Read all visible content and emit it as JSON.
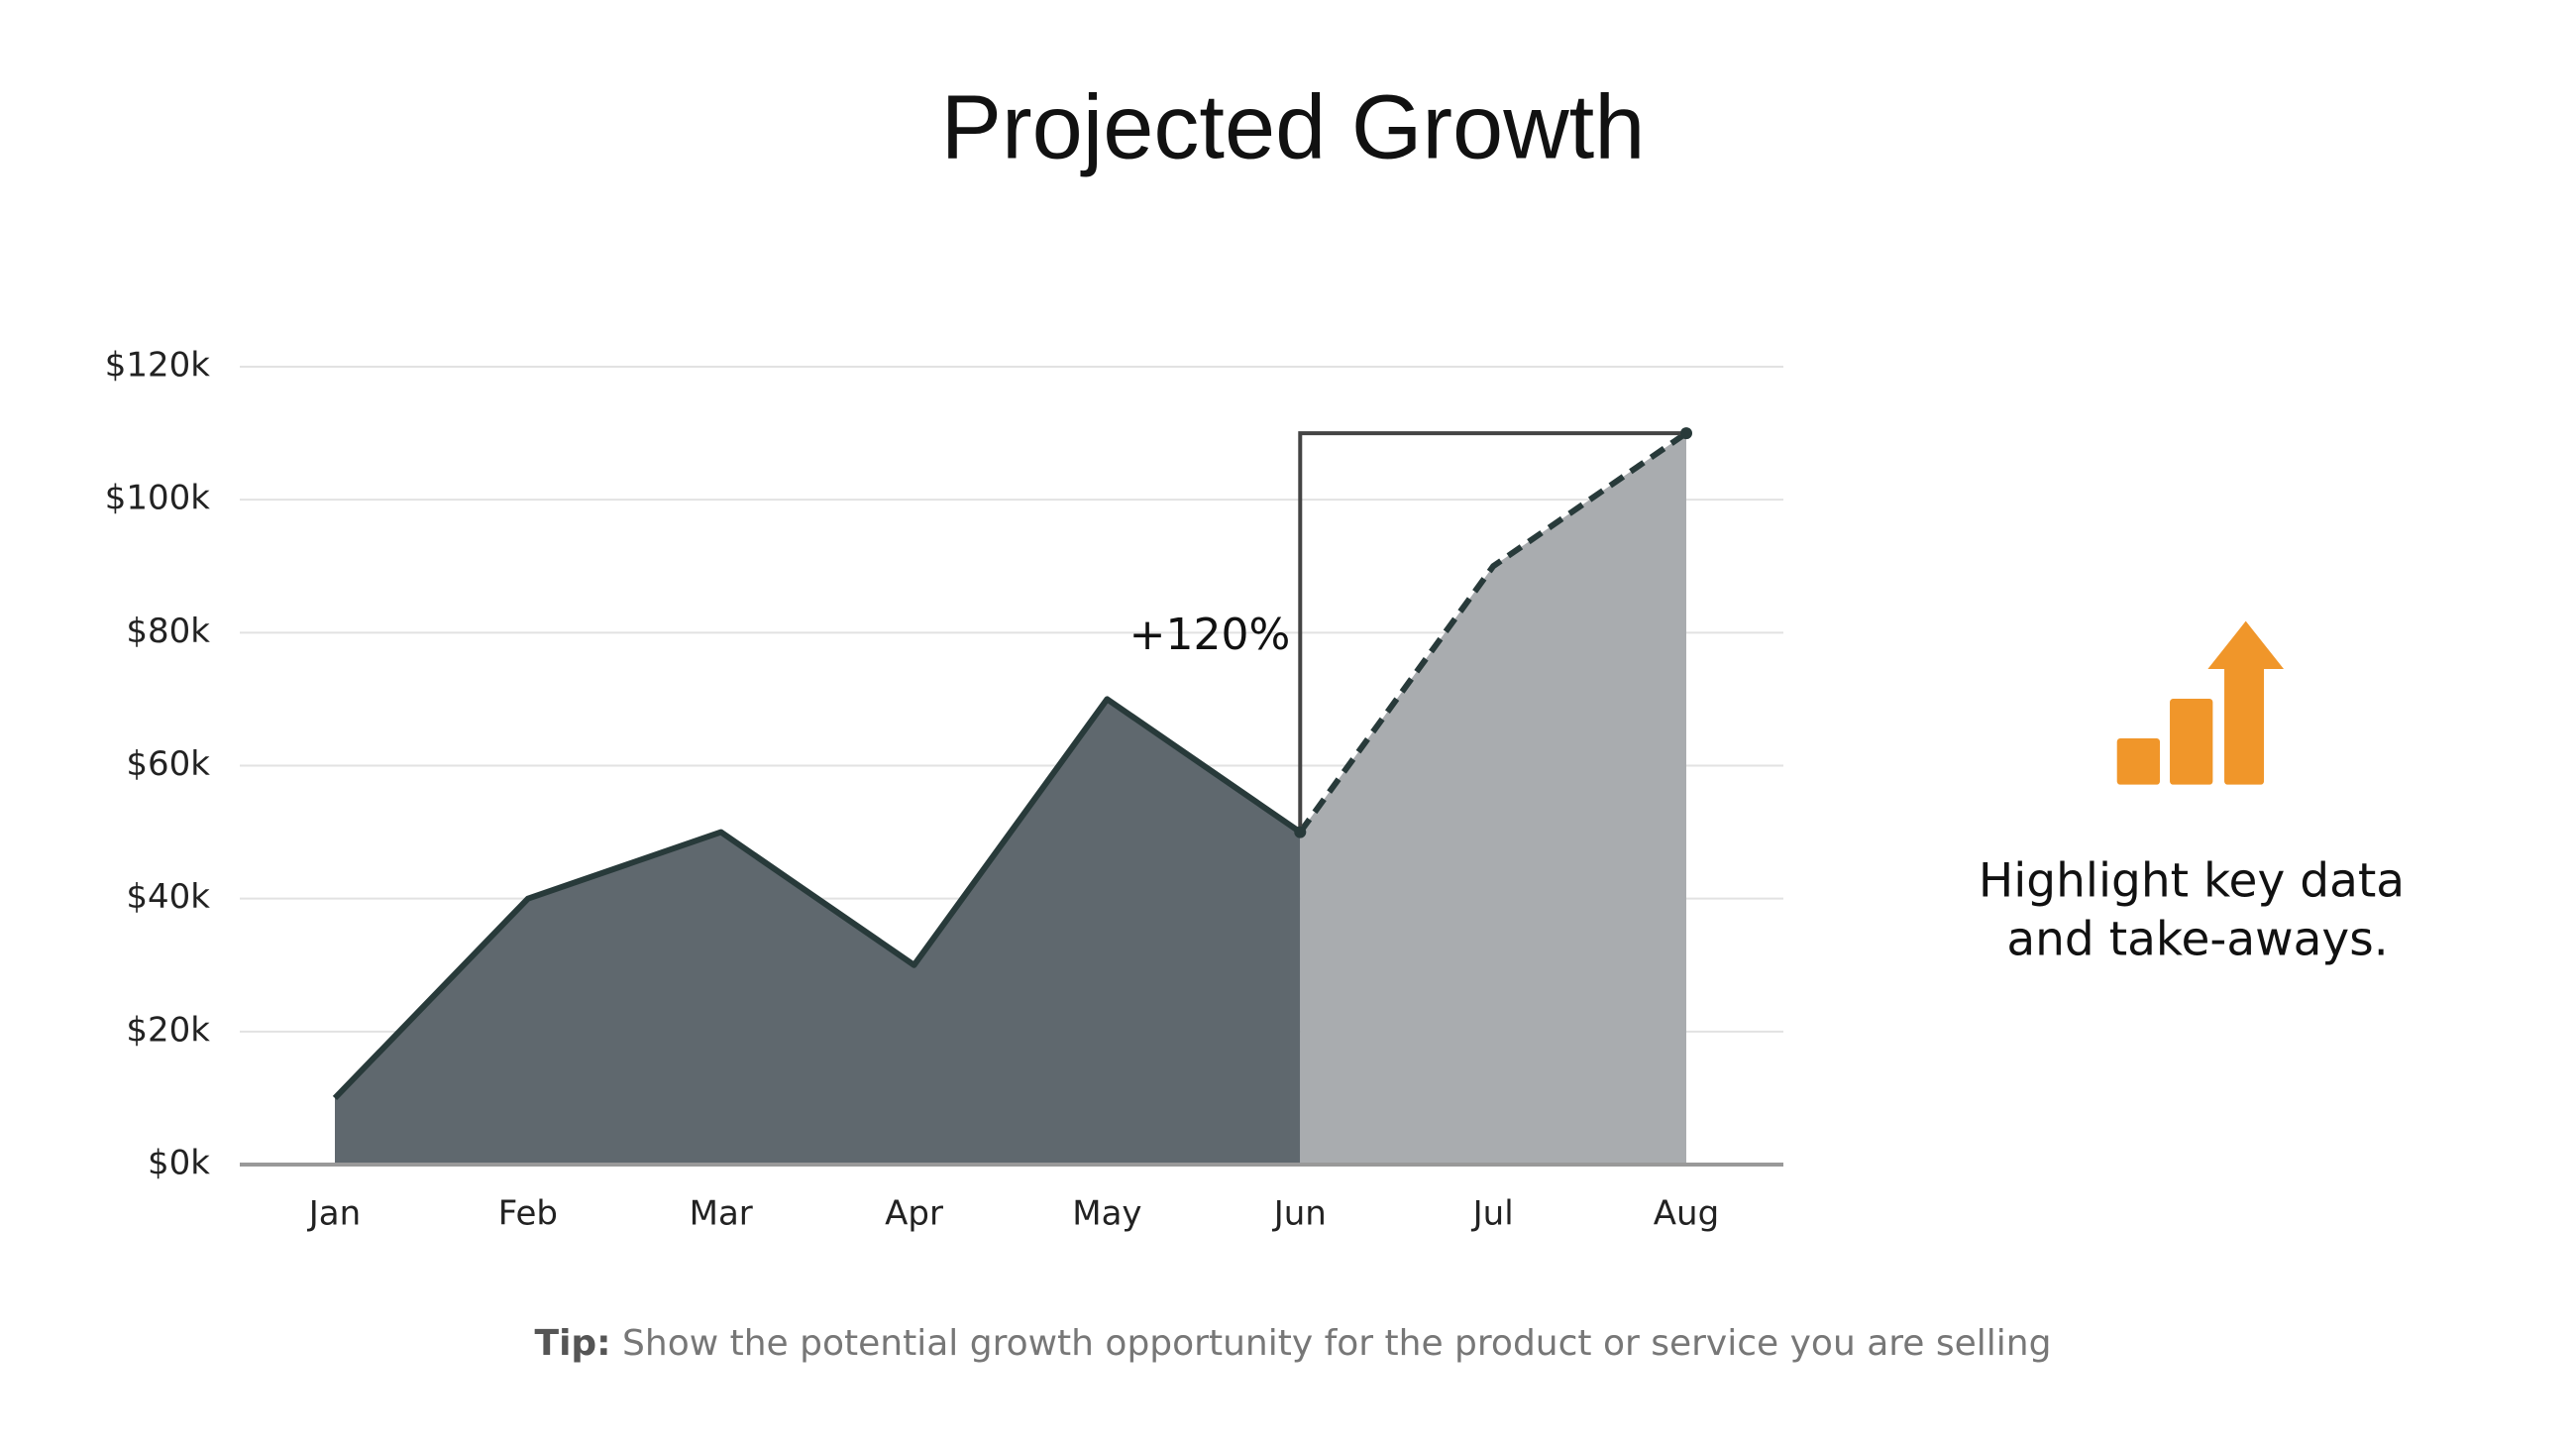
{
  "chart_data": {
    "type": "area",
    "title": "Projected Growth",
    "categories": [
      "Jan",
      "Feb",
      "Mar",
      "Apr",
      "May",
      "Jun",
      "Jul",
      "Aug"
    ],
    "series": [
      {
        "color": "#5f686e",
        "line_color": "#283a3a",
        "dashed": false,
        "values": [
          10,
          40,
          50,
          30,
          70,
          50,
          null,
          null
        ]
      },
      {
        "color": "#a9acaf",
        "line_color": "#283a3a",
        "dashed": true,
        "values": [
          null,
          null,
          null,
          null,
          null,
          50,
          90,
          110
        ]
      }
    ],
    "ylim": [
      0,
      120
    ],
    "yticks": [
      {
        "value": 0,
        "label": "$0k"
      },
      {
        "value": 20,
        "label": "$20k"
      },
      {
        "value": 40,
        "label": "$40k"
      },
      {
        "value": 60,
        "label": "$60k"
      },
      {
        "value": 80,
        "label": "$80k"
      },
      {
        "value": 100,
        "label": "$100k"
      },
      {
        "value": 120,
        "label": "$120k"
      }
    ],
    "grid": true,
    "annotation": "+120%"
  },
  "callout": {
    "lines": [
      "Highlight key data",
      "and take-aways."
    ]
  },
  "tip": {
    "label": "Tip:",
    "text": "Show the potential growth opportunity for the product or service you are selling"
  }
}
